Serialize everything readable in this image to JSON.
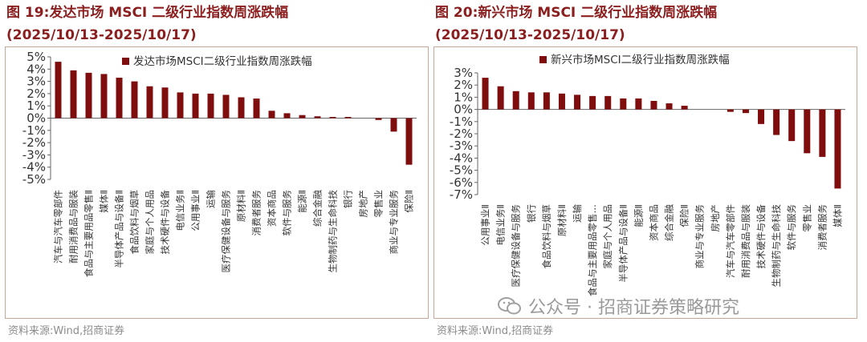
{
  "panels": [
    {
      "title": "图 19:发达市场 MSCI 二级行业指数周涨跌幅",
      "subtitle": "(2025/10/13-2025/10/17)",
      "source": "资料来源:Wind,招商证券"
    },
    {
      "title": "图 20:新兴市场 MSCI 二级行业指数周涨跌幅",
      "subtitle": "(2025/10/13-2025/10/17)",
      "source": "资料来源:Wind,招商证券"
    }
  ],
  "watermark": {
    "text": "公众号 · 招商证券策略研究",
    "icon": "wechat-icon"
  },
  "colors": {
    "bar": "#7f0d0d",
    "title": "#8b1f1f",
    "axis": "#555555"
  },
  "chart_data": [
    {
      "type": "bar",
      "legend": "发达市场MSCI二级行业指数周涨跌幅",
      "legend_position": "top-right",
      "ylim": [
        -5,
        5
      ],
      "yticks": [
        "5%",
        "4%",
        "3%",
        "2%",
        "1%",
        "0%",
        "-1%",
        "-2%",
        "-3%",
        "-4%",
        "-5%"
      ],
      "categories": [
        "汽车与汽车零部件",
        "耐用消费品与服装",
        "食品与主要用品零售Ⅱ",
        "媒体Ⅱ",
        "半导体产品与设备Ⅱ",
        "食品饮料与烟草",
        "家庭与个人用品",
        "技术硬件与设备",
        "电信业务Ⅱ",
        "公用事业Ⅱ",
        "运输",
        "医疗保健设备与服务",
        "原材料Ⅱ",
        "消费者服务",
        "资本商品",
        "软件与服务",
        "能源Ⅱ",
        "综合金融",
        "生物制药与生命科技",
        "银行",
        "房地产",
        "零售业",
        "商业与专业服务",
        "保险Ⅱ"
      ],
      "values": [
        4.6,
        3.9,
        3.7,
        3.6,
        3.3,
        3.0,
        2.6,
        2.5,
        2.1,
        2.0,
        2.0,
        1.9,
        1.7,
        1.6,
        0.6,
        0.4,
        0.25,
        0.15,
        0.1,
        0.1,
        0.0,
        -0.15,
        -1.1,
        -3.8
      ],
      "series_name": "发达市场MSCI二级行业指数周涨跌幅"
    },
    {
      "type": "bar",
      "legend": "新兴市场MSCI二级行业指数周涨跌幅",
      "legend_position": "top-right",
      "ylim": [
        -7,
        3
      ],
      "yticks": [
        "3%",
        "2%",
        "1%",
        "0%",
        "-1%",
        "-2%",
        "-3%",
        "-4%",
        "-5%",
        "-6%",
        "-7%"
      ],
      "categories": [
        "公用事业Ⅱ",
        "电信业务Ⅱ",
        "医疗保健设备与服务",
        "银行",
        "食品饮料与烟草",
        "原材料Ⅱ",
        "运输",
        "食品与主要用品零售…",
        "家庭与个人用品",
        "半导体产品与设备Ⅱ",
        "能源Ⅱ",
        "资本商品",
        "综合金融",
        "保险Ⅱ",
        "商业与专业服务",
        "房地产",
        "汽车与汽车零部件",
        "耐用消费品与服装",
        "技术硬件与设备",
        "生物制药与生命科技",
        "软件与服务",
        "零售业",
        "消费者服务",
        "媒体Ⅱ"
      ],
      "values": [
        2.6,
        1.9,
        1.5,
        1.4,
        1.4,
        1.3,
        1.2,
        1.1,
        1.1,
        0.9,
        0.9,
        0.7,
        0.5,
        0.3,
        0.0,
        0.0,
        -0.2,
        -0.3,
        -1.2,
        -2.1,
        -2.6,
        -3.6,
        -3.9,
        -6.5
      ],
      "series_name": "新兴市场MSCI二级行业指数周涨跌幅"
    }
  ]
}
